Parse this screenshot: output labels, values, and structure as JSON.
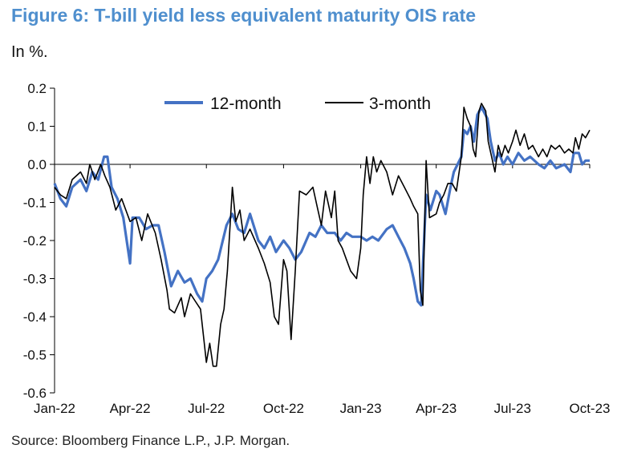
{
  "header": {
    "title": "Figure 6: T-bill yield less equivalent maturity OIS rate",
    "subtitle": "In %."
  },
  "footer": {
    "source": "Source: Bloomberg Finance L.P., J.P. Morgan."
  },
  "chart_data": {
    "type": "line",
    "title": "Figure 6: T-bill yield less equivalent maturity OIS rate",
    "ylabel": "In %.",
    "xlabel": "",
    "ylim": [
      -0.6,
      0.2
    ],
    "yticks": [
      0.2,
      0.1,
      0.0,
      -0.1,
      -0.2,
      -0.3,
      -0.4,
      -0.5,
      -0.6
    ],
    "ytick_labels": [
      "0.2",
      "0.1",
      "0.0",
      "-0.1",
      "-0.2",
      "-0.3",
      "-0.4",
      "-0.5",
      "-0.6"
    ],
    "xlim": [
      "2022-01-01",
      "2023-10-01"
    ],
    "xticks": [
      "2022-01-01",
      "2022-04-01",
      "2022-07-01",
      "2022-10-01",
      "2023-01-01",
      "2023-04-01",
      "2023-07-01",
      "2023-10-01"
    ],
    "xtick_labels": [
      "Jan-22",
      "Apr-22",
      "Jul-22",
      "Oct-22",
      "Jan-23",
      "Apr-23",
      "Jul-23",
      "Oct-23"
    ],
    "legend_position": "top-center",
    "grid": false,
    "series": [
      {
        "name": "12-month",
        "color": "#4472c4",
        "points": [
          [
            "2022-01-01",
            -0.05
          ],
          [
            "2022-01-08",
            -0.09
          ],
          [
            "2022-01-15",
            -0.11
          ],
          [
            "2022-01-22",
            -0.06
          ],
          [
            "2022-02-01",
            -0.04
          ],
          [
            "2022-02-08",
            -0.07
          ],
          [
            "2022-02-15",
            -0.02
          ],
          [
            "2022-02-22",
            -0.04
          ],
          [
            "2022-03-01",
            0.02
          ],
          [
            "2022-03-05",
            0.02
          ],
          [
            "2022-03-10",
            -0.06
          ],
          [
            "2022-03-17",
            -0.09
          ],
          [
            "2022-03-24",
            -0.14
          ],
          [
            "2022-04-01",
            -0.26
          ],
          [
            "2022-04-04",
            -0.14
          ],
          [
            "2022-04-12",
            -0.14
          ],
          [
            "2022-04-20",
            -0.17
          ],
          [
            "2022-04-28",
            -0.16
          ],
          [
            "2022-05-05",
            -0.16
          ],
          [
            "2022-05-12",
            -0.23
          ],
          [
            "2022-05-20",
            -0.32
          ],
          [
            "2022-05-28",
            -0.28
          ],
          [
            "2022-06-05",
            -0.31
          ],
          [
            "2022-06-12",
            -0.3
          ],
          [
            "2022-06-20",
            -0.34
          ],
          [
            "2022-06-26",
            -0.36
          ],
          [
            "2022-07-01",
            -0.3
          ],
          [
            "2022-07-08",
            -0.28
          ],
          [
            "2022-07-15",
            -0.25
          ],
          [
            "2022-07-25",
            -0.16
          ],
          [
            "2022-08-01",
            -0.13
          ],
          [
            "2022-08-08",
            -0.17
          ],
          [
            "2022-08-15",
            -0.18
          ],
          [
            "2022-08-22",
            -0.13
          ],
          [
            "2022-09-01",
            -0.2
          ],
          [
            "2022-09-08",
            -0.22
          ],
          [
            "2022-09-15",
            -0.19
          ],
          [
            "2022-09-22",
            -0.23
          ],
          [
            "2022-10-01",
            -0.2
          ],
          [
            "2022-10-08",
            -0.22
          ],
          [
            "2022-10-15",
            -0.25
          ],
          [
            "2022-10-22",
            -0.23
          ],
          [
            "2022-11-01",
            -0.18
          ],
          [
            "2022-11-08",
            -0.19
          ],
          [
            "2022-11-15",
            -0.16
          ],
          [
            "2022-11-22",
            -0.18
          ],
          [
            "2022-12-01",
            -0.18
          ],
          [
            "2022-12-08",
            -0.2
          ],
          [
            "2022-12-15",
            -0.18
          ],
          [
            "2022-12-22",
            -0.19
          ],
          [
            "2023-01-01",
            -0.19
          ],
          [
            "2023-01-08",
            -0.2
          ],
          [
            "2023-01-15",
            -0.19
          ],
          [
            "2023-01-22",
            -0.2
          ],
          [
            "2023-02-01",
            -0.17
          ],
          [
            "2023-02-08",
            -0.16
          ],
          [
            "2023-02-15",
            -0.19
          ],
          [
            "2023-02-22",
            -0.22
          ],
          [
            "2023-03-01",
            -0.26
          ],
          [
            "2023-03-05",
            -0.3
          ],
          [
            "2023-03-10",
            -0.36
          ],
          [
            "2023-03-14",
            -0.37
          ],
          [
            "2023-03-20",
            -0.08
          ],
          [
            "2023-03-25",
            -0.12
          ],
          [
            "2023-04-01",
            -0.07
          ],
          [
            "2023-04-05",
            -0.08
          ],
          [
            "2023-04-12",
            -0.13
          ],
          [
            "2023-04-18",
            -0.06
          ],
          [
            "2023-04-22",
            -0.02
          ],
          [
            "2023-05-01",
            0.02
          ],
          [
            "2023-05-04",
            0.09
          ],
          [
            "2023-05-08",
            0.08
          ],
          [
            "2023-05-12",
            0.1
          ],
          [
            "2023-05-16",
            0.06
          ],
          [
            "2023-05-20",
            0.13
          ],
          [
            "2023-05-25",
            0.15
          ],
          [
            "2023-06-01",
            0.12
          ],
          [
            "2023-06-05",
            0.06
          ],
          [
            "2023-06-10",
            0.01
          ],
          [
            "2023-06-15",
            0.03
          ],
          [
            "2023-06-20",
            0.0
          ],
          [
            "2023-06-25",
            0.02
          ],
          [
            "2023-07-01",
            0.0
          ],
          [
            "2023-07-08",
            0.03
          ],
          [
            "2023-07-15",
            0.01
          ],
          [
            "2023-07-22",
            0.02
          ],
          [
            "2023-08-01",
            0.0
          ],
          [
            "2023-08-08",
            -0.01
          ],
          [
            "2023-08-15",
            0.01
          ],
          [
            "2023-08-22",
            -0.01
          ],
          [
            "2023-09-01",
            0.0
          ],
          [
            "2023-09-08",
            -0.02
          ],
          [
            "2023-09-12",
            0.03
          ],
          [
            "2023-09-18",
            0.03
          ],
          [
            "2023-09-22",
            0.0
          ],
          [
            "2023-09-26",
            0.01
          ],
          [
            "2023-10-01",
            0.01
          ]
        ]
      },
      {
        "name": "3-month",
        "color": "#000000",
        "points": [
          [
            "2022-01-01",
            -0.06
          ],
          [
            "2022-01-08",
            -0.08
          ],
          [
            "2022-01-15",
            -0.09
          ],
          [
            "2022-01-22",
            -0.04
          ],
          [
            "2022-02-01",
            -0.02
          ],
          [
            "2022-02-08",
            -0.05
          ],
          [
            "2022-02-12",
            0.0
          ],
          [
            "2022-02-18",
            -0.04
          ],
          [
            "2022-02-25",
            0.0
          ],
          [
            "2022-03-02",
            -0.03
          ],
          [
            "2022-03-08",
            -0.06
          ],
          [
            "2022-03-15",
            -0.12
          ],
          [
            "2022-03-22",
            -0.09
          ],
          [
            "2022-04-01",
            -0.15
          ],
          [
            "2022-04-08",
            -0.14
          ],
          [
            "2022-04-15",
            -0.2
          ],
          [
            "2022-04-22",
            -0.13
          ],
          [
            "2022-05-01",
            -0.18
          ],
          [
            "2022-05-08",
            -0.25
          ],
          [
            "2022-05-15",
            -0.33
          ],
          [
            "2022-05-18",
            -0.38
          ],
          [
            "2022-05-24",
            -0.39
          ],
          [
            "2022-06-01",
            -0.35
          ],
          [
            "2022-06-05",
            -0.4
          ],
          [
            "2022-06-12",
            -0.34
          ],
          [
            "2022-06-18",
            -0.36
          ],
          [
            "2022-06-24",
            -0.38
          ],
          [
            "2022-06-28",
            -0.46
          ],
          [
            "2022-07-01",
            -0.52
          ],
          [
            "2022-07-05",
            -0.47
          ],
          [
            "2022-07-09",
            -0.53
          ],
          [
            "2022-07-13",
            -0.53
          ],
          [
            "2022-07-18",
            -0.42
          ],
          [
            "2022-07-22",
            -0.38
          ],
          [
            "2022-07-26",
            -0.28
          ],
          [
            "2022-08-01",
            -0.06
          ],
          [
            "2022-08-05",
            -0.15
          ],
          [
            "2022-08-10",
            -0.12
          ],
          [
            "2022-08-15",
            -0.2
          ],
          [
            "2022-08-22",
            -0.17
          ],
          [
            "2022-09-01",
            -0.22
          ],
          [
            "2022-09-08",
            -0.26
          ],
          [
            "2022-09-15",
            -0.31
          ],
          [
            "2022-09-20",
            -0.4
          ],
          [
            "2022-09-25",
            -0.42
          ],
          [
            "2022-10-01",
            -0.25
          ],
          [
            "2022-10-05",
            -0.28
          ],
          [
            "2022-10-10",
            -0.46
          ],
          [
            "2022-10-15",
            -0.28
          ],
          [
            "2022-10-20",
            -0.07
          ],
          [
            "2022-10-28",
            -0.08
          ],
          [
            "2022-11-05",
            -0.06
          ],
          [
            "2022-11-10",
            -0.11
          ],
          [
            "2022-11-15",
            -0.16
          ],
          [
            "2022-11-20",
            -0.07
          ],
          [
            "2022-11-27",
            -0.14
          ],
          [
            "2022-12-01",
            -0.07
          ],
          [
            "2022-12-05",
            -0.2
          ],
          [
            "2022-12-10",
            -0.22
          ],
          [
            "2022-12-15",
            -0.25
          ],
          [
            "2022-12-20",
            -0.28
          ],
          [
            "2022-12-27",
            -0.3
          ],
          [
            "2023-01-01",
            -0.22
          ],
          [
            "2023-01-04",
            -0.08
          ],
          [
            "2023-01-08",
            0.02
          ],
          [
            "2023-01-12",
            -0.05
          ],
          [
            "2023-01-16",
            0.02
          ],
          [
            "2023-01-20",
            -0.02
          ],
          [
            "2023-01-25",
            0.01
          ],
          [
            "2023-02-01",
            -0.02
          ],
          [
            "2023-02-08",
            -0.08
          ],
          [
            "2023-02-15",
            -0.03
          ],
          [
            "2023-02-22",
            -0.06
          ],
          [
            "2023-03-01",
            -0.09
          ],
          [
            "2023-03-05",
            -0.11
          ],
          [
            "2023-03-10",
            -0.13
          ],
          [
            "2023-03-13",
            -0.33
          ],
          [
            "2023-03-16",
            -0.37
          ],
          [
            "2023-03-20",
            0.01
          ],
          [
            "2023-03-24",
            -0.14
          ],
          [
            "2023-04-01",
            -0.13
          ],
          [
            "2023-04-05",
            -0.1
          ],
          [
            "2023-04-10",
            -0.08
          ],
          [
            "2023-04-15",
            -0.05
          ],
          [
            "2023-04-20",
            -0.05
          ],
          [
            "2023-04-25",
            -0.07
          ],
          [
            "2023-05-01",
            0.02
          ],
          [
            "2023-05-04",
            0.15
          ],
          [
            "2023-05-08",
            0.12
          ],
          [
            "2023-05-12",
            0.1
          ],
          [
            "2023-05-15",
            0.04
          ],
          [
            "2023-05-18",
            0.02
          ],
          [
            "2023-05-22",
            0.14
          ],
          [
            "2023-05-25",
            0.16
          ],
          [
            "2023-05-30",
            0.14
          ],
          [
            "2023-06-02",
            0.06
          ],
          [
            "2023-06-06",
            0.02
          ],
          [
            "2023-06-10",
            -0.02
          ],
          [
            "2023-06-14",
            0.05
          ],
          [
            "2023-06-18",
            0.02
          ],
          [
            "2023-06-22",
            0.05
          ],
          [
            "2023-06-26",
            0.03
          ],
          [
            "2023-07-01",
            0.06
          ],
          [
            "2023-07-05",
            0.09
          ],
          [
            "2023-07-10",
            0.05
          ],
          [
            "2023-07-15",
            0.08
          ],
          [
            "2023-07-20",
            0.04
          ],
          [
            "2023-07-25",
            0.05
          ],
          [
            "2023-08-01",
            0.02
          ],
          [
            "2023-08-06",
            0.04
          ],
          [
            "2023-08-11",
            0.02
          ],
          [
            "2023-08-16",
            0.05
          ],
          [
            "2023-08-21",
            0.04
          ],
          [
            "2023-08-26",
            0.05
          ],
          [
            "2023-09-01",
            0.03
          ],
          [
            "2023-09-06",
            0.04
          ],
          [
            "2023-09-11",
            0.03
          ],
          [
            "2023-09-14",
            0.07
          ],
          [
            "2023-09-18",
            0.04
          ],
          [
            "2023-09-22",
            0.08
          ],
          [
            "2023-09-26",
            0.07
          ],
          [
            "2023-10-01",
            0.09
          ]
        ]
      }
    ]
  }
}
